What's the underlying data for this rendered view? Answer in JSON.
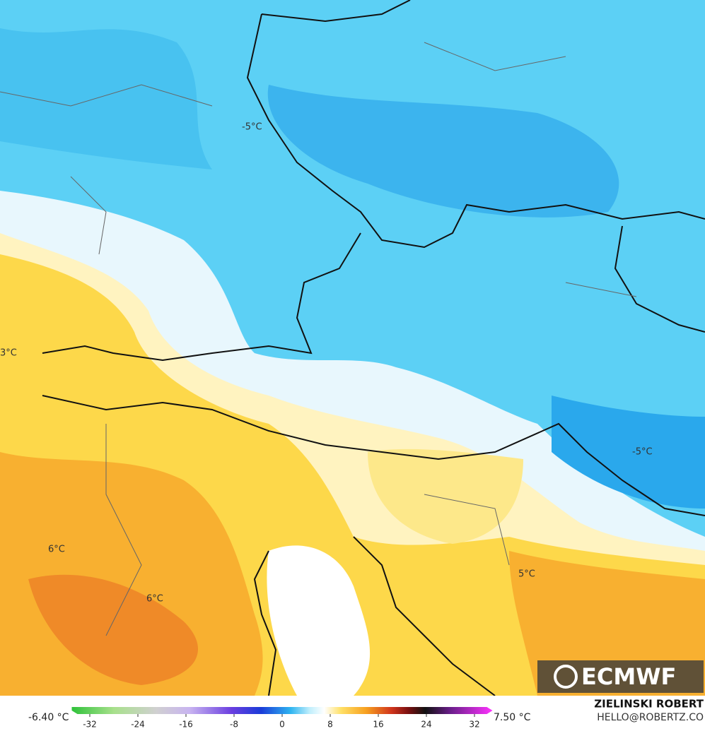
{
  "map": {
    "labels": [
      "-5°C",
      "3°C",
      "6°C",
      "6°C",
      "5°C",
      "-5°C"
    ]
  },
  "logo": "ECMWF",
  "colorbar": {
    "min_label": "-6.40 °C",
    "max_label": "7.50 °C",
    "lim": [
      -35,
      35
    ],
    "ticks": [
      -32,
      -24,
      -16,
      -8,
      0,
      8,
      16,
      24,
      32
    ]
  },
  "credit": {
    "name": "ZIELINSKI ROBERT",
    "email": "HELLO@ROBERTZ.CO"
  }
}
